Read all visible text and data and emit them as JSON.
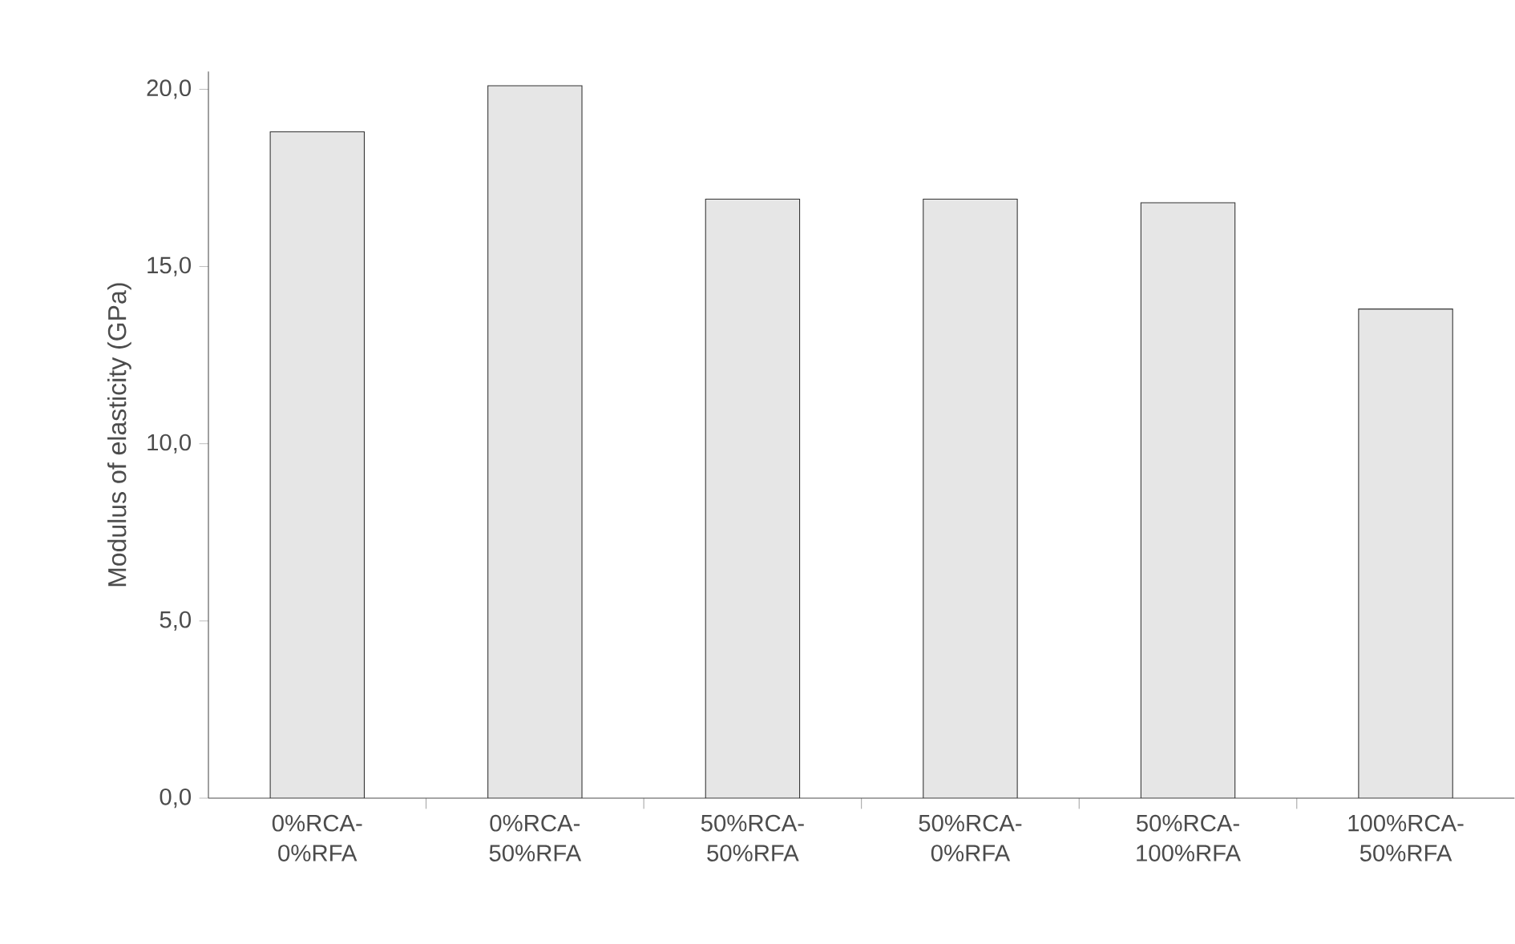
{
  "chart_data": {
    "type": "bar",
    "ylabel": "Modulus of elasticity (GPa)",
    "categories": [
      "0%RCA- 0%RFA",
      "0%RCA- 50%RFA",
      "50%RCA- 50%RFA",
      "50%RCA- 0%RFA",
      "50%RCA- 100%RFA",
      "100%RCA- 50%RFA"
    ],
    "values": [
      18.8,
      20.1,
      16.9,
      16.9,
      16.8,
      13.8
    ],
    "color": "#e6e6e6",
    "ylim": [
      0,
      20.5
    ],
    "yticks": [
      {
        "value": 0,
        "label": "0,0"
      },
      {
        "value": 5,
        "label": "5,0"
      },
      {
        "value": 10,
        "label": "10,0"
      },
      {
        "value": 15,
        "label": "15,0"
      },
      {
        "value": 20,
        "label": "20,0"
      }
    ],
    "tick_labels": [
      "x",
      "y"
    ]
  }
}
